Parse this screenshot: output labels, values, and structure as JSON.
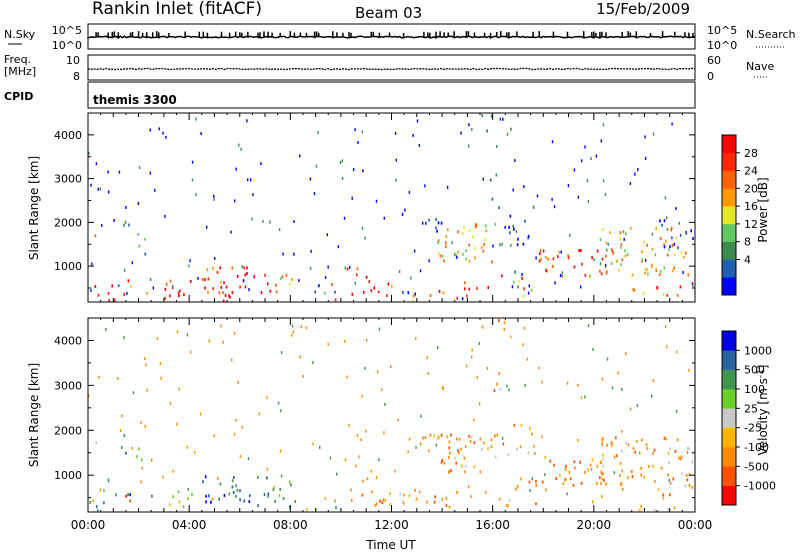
{
  "header": {
    "station": "Rankin Inlet (fitACF)",
    "beam": "Beam 03",
    "date": "15/Feb/2009"
  },
  "strips": {
    "nsky_label": "N.Sky",
    "nsky_ticks": [
      "10^5",
      "10^0"
    ],
    "nsearch_label": "N.Search",
    "nsearch_ticks": [
      "10^5",
      "10^0"
    ],
    "freq_label_1": "Freq.",
    "freq_label_2": "[MHz]",
    "freq_ticks": [
      "10",
      "8"
    ],
    "nave_label": "Nave",
    "nave_ticks": [
      "60",
      "0"
    ],
    "cpid_label": "CPID",
    "cpid_value": "themis 3300"
  },
  "colors": {
    "power_scale": [
      "#0000ff",
      "#2060b0",
      "#3c8c50",
      "#60c860",
      "#e6e628",
      "#ff9b00",
      "#ff6400",
      "#ff2800",
      "#ff0000"
    ],
    "velocity_scale": [
      "#ff0000",
      "#ff5000",
      "#ff8c00",
      "#ffb400",
      "#c8c8c8",
      "#64d228",
      "#3c9650",
      "#2864a0",
      "#0000e6"
    ]
  },
  "chart_data": [
    {
      "type": "heatmap",
      "name": "power-panel",
      "ylabel": "Slant Range [km]",
      "yticks": [
        "4000",
        "3000",
        "2000",
        "1000"
      ],
      "xticks": [
        "00:00",
        "04:00",
        "08:00",
        "12:00",
        "16:00",
        "20:00",
        "00:00"
      ],
      "xrange_hours": [
        0,
        24
      ],
      "yrange_km": [
        180,
        4500
      ],
      "colorbar_label": "Power [dB]",
      "colorbar_ticks": [
        "28",
        "24",
        "20",
        "16",
        "12",
        "8",
        "4"
      ],
      "colorbar_range": [
        0,
        30
      ]
    },
    {
      "type": "heatmap",
      "name": "velocity-panel",
      "ylabel": "Slant Range [km]",
      "yticks": [
        "4000",
        "3000",
        "2000",
        "1000"
      ],
      "xticks": [
        "00:00",
        "04:00",
        "08:00",
        "12:00",
        "16:00",
        "20:00",
        "00:00"
      ],
      "xlabel": "Time UT",
      "xrange_hours": [
        0,
        24
      ],
      "yrange_km": [
        180,
        4500
      ],
      "colorbar_label": "Velocity [m s^-1]",
      "colorbar_ticks": [
        "1000",
        "500",
        "100",
        "25",
        "-25",
        "-100",
        "-500",
        "-1000"
      ]
    }
  ]
}
